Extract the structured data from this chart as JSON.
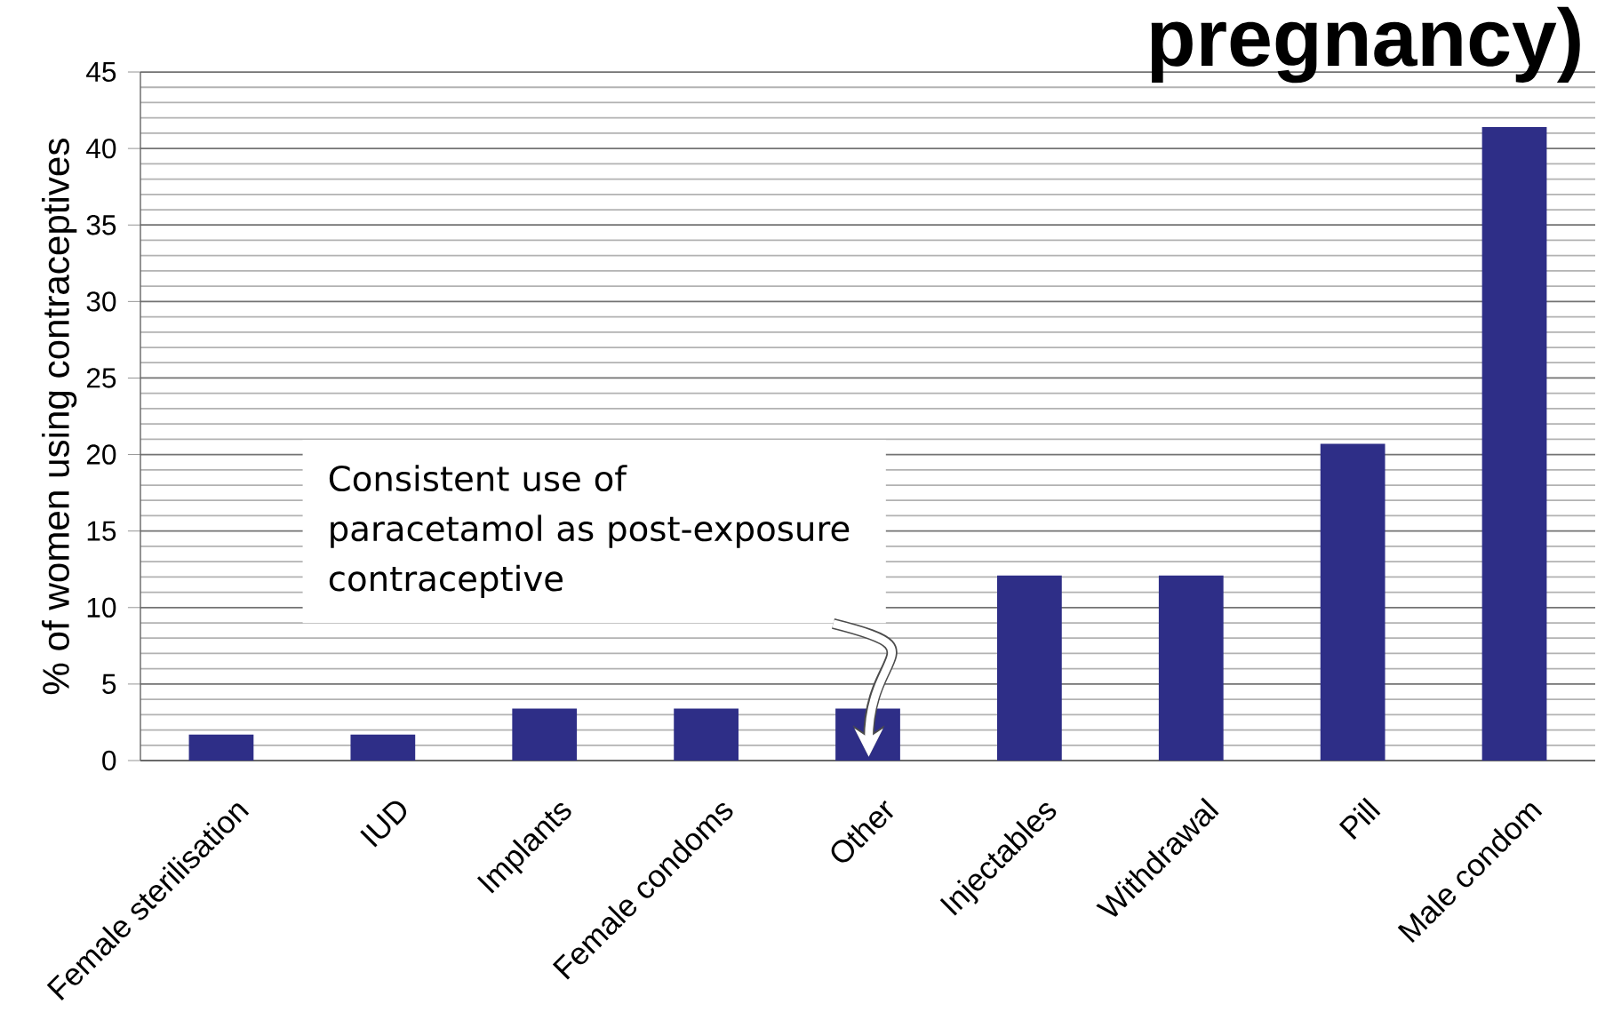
{
  "chart_data": {
    "type": "bar",
    "title": "pregnancy)",
    "ylabel": "% of women using contraceptives",
    "categories": [
      "Female sterilisation",
      "IUD",
      "Implants",
      "Female condoms",
      "Other",
      "Injectables",
      "Withdrawal",
      "Pill",
      "Male condom"
    ],
    "values": [
      1.7,
      1.7,
      3.4,
      3.4,
      3.4,
      12.1,
      12.1,
      20.7,
      41.4
    ],
    "color": "#2e2e87",
    "ylim": [
      0,
      45
    ],
    "yticks": [
      0,
      5,
      10,
      15,
      20,
      25,
      30,
      35,
      40,
      45
    ],
    "grid": "y",
    "annotations": [
      "Consistent use of paracetamol as post-exposure contraceptive"
    ]
  }
}
